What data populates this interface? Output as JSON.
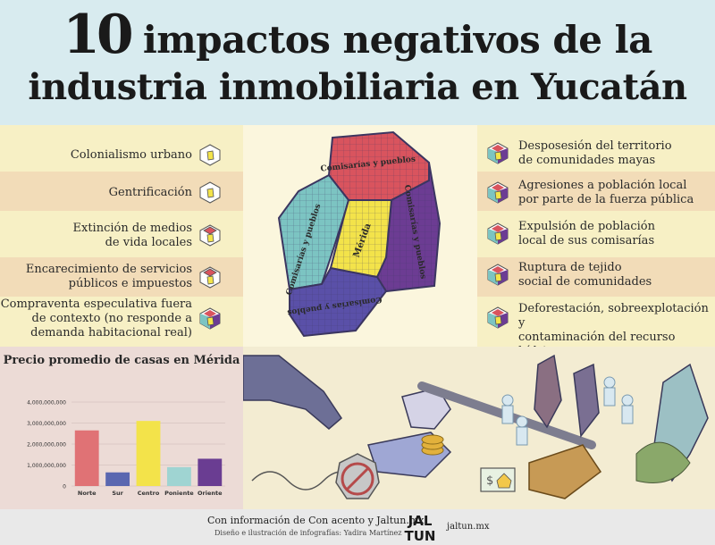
{
  "header": {
    "title_number": "10",
    "title_line1_rest": "impactos negativos de la",
    "title_line2": "industria inmobiliaria en Yucatán"
  },
  "left_impacts": [
    {
      "lines": [
        "Colonialismo urbano"
      ],
      "icon": "yellow-cube-icon"
    },
    {
      "lines": [
        "Gentrificación"
      ],
      "icon": "yellow-cube-icon"
    },
    {
      "lines": [
        "Extinción de medios",
        "de vida locales"
      ],
      "icon": "red-cube-icon"
    },
    {
      "lines": [
        "Encarecimiento de servicios",
        "públicos  e impuestos"
      ],
      "icon": "red-cube-icon"
    },
    {
      "lines": [
        "Compraventa especulativa fuera",
        "de contexto (no responde a",
        "demanda habitacional real)"
      ],
      "icon": "multicolor-cube-icon"
    }
  ],
  "right_impacts": [
    {
      "lines": [
        "Desposesión del territorio",
        "de comunidades mayas"
      ],
      "icon": "multicolor-cube-icon"
    },
    {
      "lines": [
        "Agresiones a población local",
        "por parte de la fuerza pública"
      ],
      "icon": "multicolor-cube-icon"
    },
    {
      "lines": [
        "Expulsión de población",
        "local de sus comisarías"
      ],
      "icon": "multicolor-cube-icon"
    },
    {
      "lines": [
        "Ruptura de tejido",
        "social de comunidades"
      ],
      "icon": "multicolor-cube-icon"
    },
    {
      "lines": [
        "Deforestación, sobreexplotación y",
        "contaminación del recurso hídrico"
      ],
      "icon": "multicolor-cube-icon"
    }
  ],
  "map": {
    "labels": {
      "north": "Comisarías y pueblos",
      "west": "Comisarías y pueblos",
      "east": "Comisarías y pueblos",
      "south": "Comisarías y pueblos",
      "center": "Mérida"
    },
    "colors": {
      "north": "#d9545e",
      "west": "#7cc4c2",
      "east": "#6c3c93",
      "south": "#5a50a8",
      "center": "#f3e34a",
      "grid": "#3b3560"
    }
  },
  "chart_data": {
    "type": "bar",
    "title": "Precio promedio de casas en Mérida",
    "categories": [
      "Norte",
      "Sur",
      "Centro",
      "Poniente",
      "Oriente"
    ],
    "values": [
      2650000000,
      650000000,
      3100000000,
      900000000,
      1300000000
    ],
    "colors": [
      "#e07275",
      "#5a67b0",
      "#f3e34a",
      "#9fd4d2",
      "#6a3d92"
    ],
    "ylim": [
      0,
      4000000000
    ],
    "yticks": [
      0,
      1000000000,
      2000000000,
      3000000000,
      4000000000
    ],
    "ytick_labels": [
      "0",
      "1,000,000,000",
      "2,000,000,000",
      "3,000,000,000",
      "4,000,000,000"
    ],
    "grid": true
  },
  "footer": {
    "credit": "Con información de Con acento y Jaltun.mx",
    "design": "Diseño e ilustración de infografías: Yadira Martínez",
    "logo_top": "JAL",
    "logo_bottom": "TUN",
    "url": "jaltun.mx"
  }
}
